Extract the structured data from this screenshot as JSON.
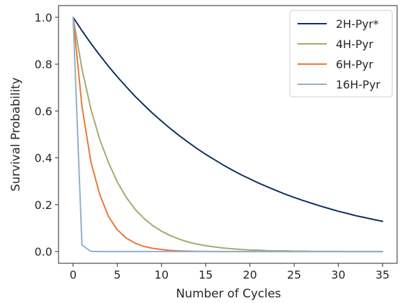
{
  "chart_data": {
    "type": "line",
    "title": "",
    "xlabel": "Number of Cycles",
    "ylabel": "Survival Probability",
    "xlim": [
      -1.65,
      36.65
    ],
    "ylim": [
      -0.05,
      1.05
    ],
    "xticks": [
      0,
      5,
      10,
      15,
      20,
      25,
      30,
      35
    ],
    "yticks": [
      0.0,
      0.2,
      0.4,
      0.6,
      0.8,
      1.0
    ],
    "ytick_labels": [
      "0.0",
      "0.2",
      "0.4",
      "0.6",
      "0.8",
      "1.0"
    ],
    "grid": false,
    "legend_position": "top-right",
    "x": [
      0,
      1,
      2,
      3,
      4,
      5,
      6,
      7,
      8,
      9,
      10,
      11,
      12,
      13,
      14,
      15,
      16,
      17,
      18,
      19,
      20,
      21,
      22,
      23,
      24,
      25,
      26,
      27,
      28,
      29,
      30,
      31,
      32,
      33,
      34,
      35
    ],
    "series": [
      {
        "name": "2H-Pyr*",
        "color": "#0d2f5c",
        "values": [
          1.0,
          0.943,
          0.889,
          0.839,
          0.791,
          0.746,
          0.704,
          0.663,
          0.626,
          0.59,
          0.557,
          0.525,
          0.495,
          0.467,
          0.44,
          0.415,
          0.392,
          0.369,
          0.348,
          0.328,
          0.31,
          0.292,
          0.276,
          0.26,
          0.245,
          0.231,
          0.218,
          0.206,
          0.194,
          0.183,
          0.172,
          0.163,
          0.153,
          0.145,
          0.137,
          0.129
        ]
      },
      {
        "name": "4H-Pyr",
        "color": "#a0ab6b",
        "values": [
          1.0,
          0.78,
          0.61,
          0.48,
          0.38,
          0.297,
          0.232,
          0.181,
          0.142,
          0.111,
          0.087,
          0.068,
          0.053,
          0.041,
          0.032,
          0.025,
          0.02,
          0.015,
          0.012,
          0.009,
          0.007,
          0.006,
          0.004,
          0.003,
          0.003,
          0.002,
          0.002,
          0.001,
          0.001,
          0.001,
          0.001,
          0.0,
          0.0,
          0.0,
          0.0,
          0.0
        ]
      },
      {
        "name": "6H-Pyr",
        "color": "#e8773a",
        "values": [
          1.0,
          0.62,
          0.385,
          0.245,
          0.15,
          0.093,
          0.058,
          0.036,
          0.022,
          0.014,
          0.009,
          0.005,
          0.003,
          0.002,
          0.001,
          0.001,
          0.0,
          0.0,
          0.0,
          0.0,
          0.0,
          0.0,
          0.0,
          0.0,
          0.0,
          0.0,
          0.0,
          0.0,
          0.0,
          0.0,
          0.0,
          0.0,
          0.0,
          0.0,
          0.0,
          0.0
        ]
      },
      {
        "name": "16H-Pyr",
        "color": "#8fb0cc",
        "values": [
          1.0,
          0.028,
          0.001,
          0.0,
          0.0,
          0.0,
          0.0,
          0.0,
          0.0,
          0.0,
          0.0,
          0.0,
          0.0,
          0.0,
          0.0,
          0.0,
          0.0,
          0.0,
          0.0,
          0.0,
          0.0,
          0.0,
          0.0,
          0.0,
          0.0,
          0.0,
          0.0,
          0.0,
          0.0,
          0.0,
          0.0,
          0.0,
          0.0,
          0.0,
          0.0,
          0.0
        ]
      }
    ]
  }
}
